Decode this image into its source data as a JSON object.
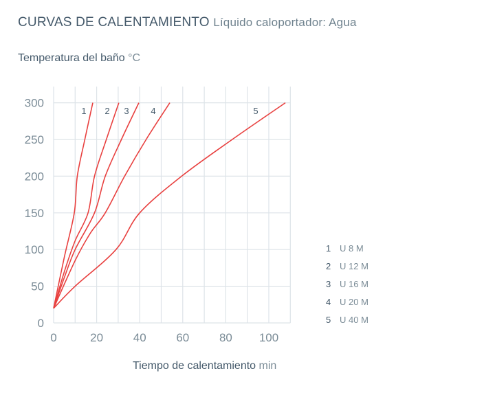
{
  "header": {
    "title": "CURVAS DE CALENTAMIENTO",
    "subtitle": "Líquido caloportador: Agua"
  },
  "axes": {
    "y_label": "Temperatura del baño",
    "y_unit": "°C",
    "x_label": "Tiempo de calentamiento",
    "x_unit": "min"
  },
  "colors": {
    "curve": "#e8403f",
    "grid": "#dde3e8",
    "text": "#44596a",
    "tick": "#7a8b96"
  },
  "legend": [
    {
      "num": "1",
      "label": "U 8 M"
    },
    {
      "num": "2",
      "label": "U 12 M"
    },
    {
      "num": "3",
      "label": "U 16 M"
    },
    {
      "num": "4",
      "label": "U 20 M"
    },
    {
      "num": "5",
      "label": "U 40 M"
    }
  ],
  "chart_data": {
    "type": "line",
    "title": "CURVAS DE CALENTAMIENTO",
    "subtitle": "Líquido caloportador: Agua",
    "xlabel": "Tiempo de calentamiento (min)",
    "ylabel": "Temperatura del baño (°C)",
    "xlim": [
      0,
      110
    ],
    "ylim": [
      0,
      300
    ],
    "x_ticks": [
      0,
      20,
      40,
      60,
      80,
      100
    ],
    "y_ticks": [
      0,
      50,
      100,
      150,
      200,
      250,
      300
    ],
    "grid": true,
    "x_grid_step": 10,
    "legend_position": "right",
    "series": [
      {
        "name": "1",
        "label": "U 8 M",
        "points": [
          [
            0,
            20
          ],
          [
            5,
            90
          ],
          [
            9.6,
            150
          ],
          [
            11,
            200
          ],
          [
            14.5,
            250
          ],
          [
            18.2,
            300
          ]
        ]
      },
      {
        "name": "2",
        "label": "U 12 M",
        "points": [
          [
            0,
            20
          ],
          [
            5,
            70
          ],
          [
            10,
            112
          ],
          [
            16,
            150
          ],
          [
            19,
            200
          ],
          [
            24.5,
            250
          ],
          [
            30.3,
            300
          ]
        ]
      },
      {
        "name": "3",
        "label": "U 16 M",
        "points": [
          [
            0,
            20
          ],
          [
            5,
            62
          ],
          [
            10,
            100
          ],
          [
            19,
            150
          ],
          [
            24,
            200
          ],
          [
            31.5,
            250
          ],
          [
            39.6,
            300
          ]
        ]
      },
      {
        "name": "4",
        "label": "U 20 M",
        "points": [
          [
            0,
            20
          ],
          [
            10,
            85
          ],
          [
            17,
            122
          ],
          [
            24,
            150
          ],
          [
            33,
            200
          ],
          [
            43,
            250
          ],
          [
            54,
            300
          ]
        ]
      },
      {
        "name": "5",
        "label": "U 40 M",
        "points": [
          [
            0,
            20
          ],
          [
            10,
            50
          ],
          [
            29,
            100
          ],
          [
            40,
            150
          ],
          [
            59.5,
            200
          ],
          [
            83,
            250
          ],
          [
            107.7,
            300
          ]
        ]
      }
    ]
  }
}
